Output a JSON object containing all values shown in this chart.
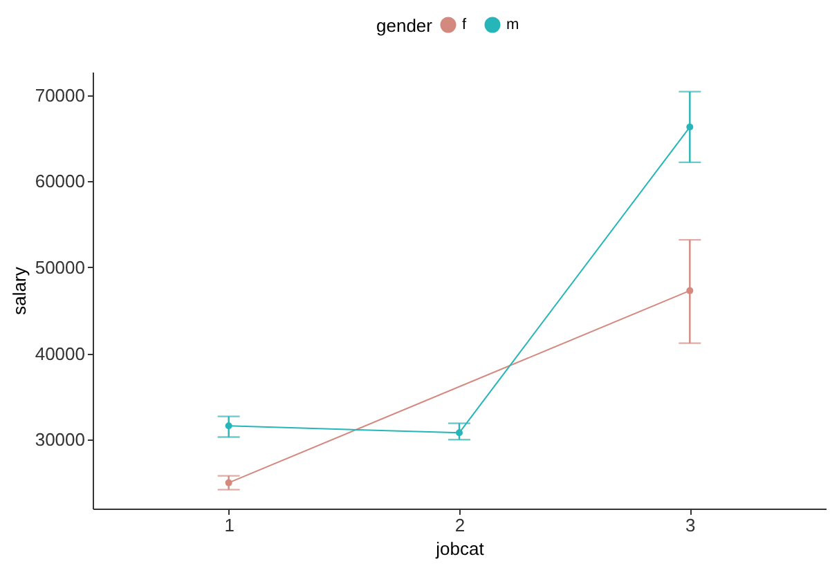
{
  "chart_data": {
    "type": "line",
    "xlabel": "jobcat",
    "ylabel": "salary",
    "legend_title": "gender",
    "categories": [
      "1",
      "2",
      "3"
    ],
    "series": [
      {
        "name": "f",
        "color": "#d4897f",
        "x": [
          "1",
          "3"
        ],
        "values": [
          25000,
          47300
        ],
        "errors": [
          [
            24200,
            25800
          ],
          [
            41200,
            53200
          ]
        ]
      },
      {
        "name": "m",
        "color": "#26b5b8",
        "values": [
          31600,
          30800,
          66300
        ],
        "errors": [
          [
            30300,
            32700
          ],
          [
            30000,
            31900
          ],
          [
            62200,
            70400
          ]
        ]
      }
    ],
    "ylim": [
      22000,
      72700
    ],
    "yticks": [
      30000,
      40000,
      50000,
      60000,
      70000
    ],
    "grid": false,
    "legend": "top",
    "marker": "circle",
    "line_style": "solid"
  }
}
